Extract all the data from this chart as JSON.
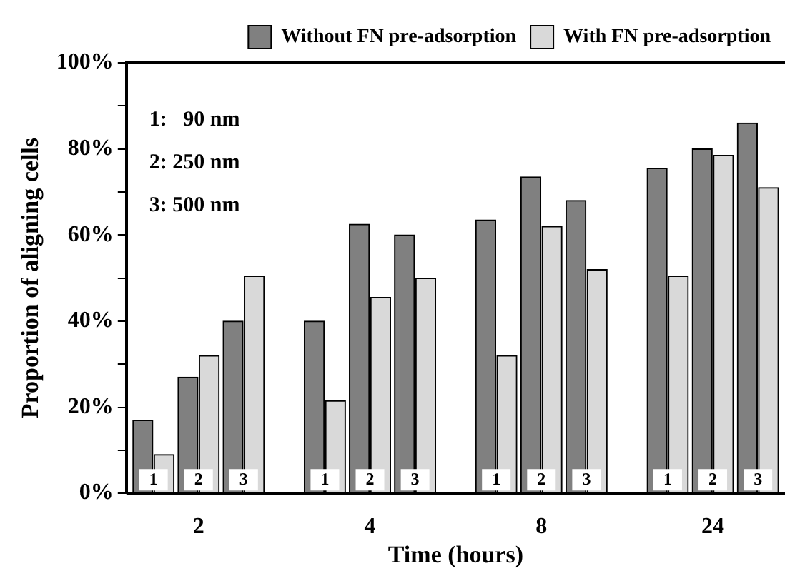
{
  "chart_data": {
    "type": "bar",
    "xlabel": "Time (hours)",
    "ylabel": "Proportion of aligning cells",
    "categories": [
      "1",
      "2",
      "3",
      "1",
      "2",
      "3",
      "1",
      "2",
      "3",
      "1",
      "2",
      "3"
    ],
    "series": [
      {
        "name": "Without FN pre-adsorption",
        "color": "#808080",
        "values": [
          17,
          27,
          40,
          40,
          62.5,
          60,
          63.5,
          73.5,
          68,
          75.5,
          80,
          86
        ]
      },
      {
        "name": "With FN pre-adsorption",
        "color": "#d9d9d9",
        "values": [
          9,
          32,
          50.5,
          21.5,
          45.5,
          50,
          32,
          62,
          52,
          50.5,
          78.5,
          71
        ]
      }
    ],
    "ylim": [
      0,
      100
    ],
    "yticks": [
      {
        "value": 0,
        "label": "0%"
      },
      {
        "value": 10,
        "label": null
      },
      {
        "value": 20,
        "label": "20%"
      },
      {
        "value": 30,
        "label": null
      },
      {
        "value": 40,
        "label": "40%"
      },
      {
        "value": 50,
        "label": null
      },
      {
        "value": 60,
        "label": "60%"
      },
      {
        "value": 70,
        "label": null
      },
      {
        "value": 80,
        "label": "80%"
      },
      {
        "value": 90,
        "label": null
      },
      {
        "value": 100,
        "label": "100%"
      }
    ],
    "annotations": [
      "1:   90 nm",
      "2: 250 nm",
      "3: 500 nm",
      "2",
      "4",
      "8",
      "24"
    ],
    "legend": "top right",
    "grid": false
  }
}
